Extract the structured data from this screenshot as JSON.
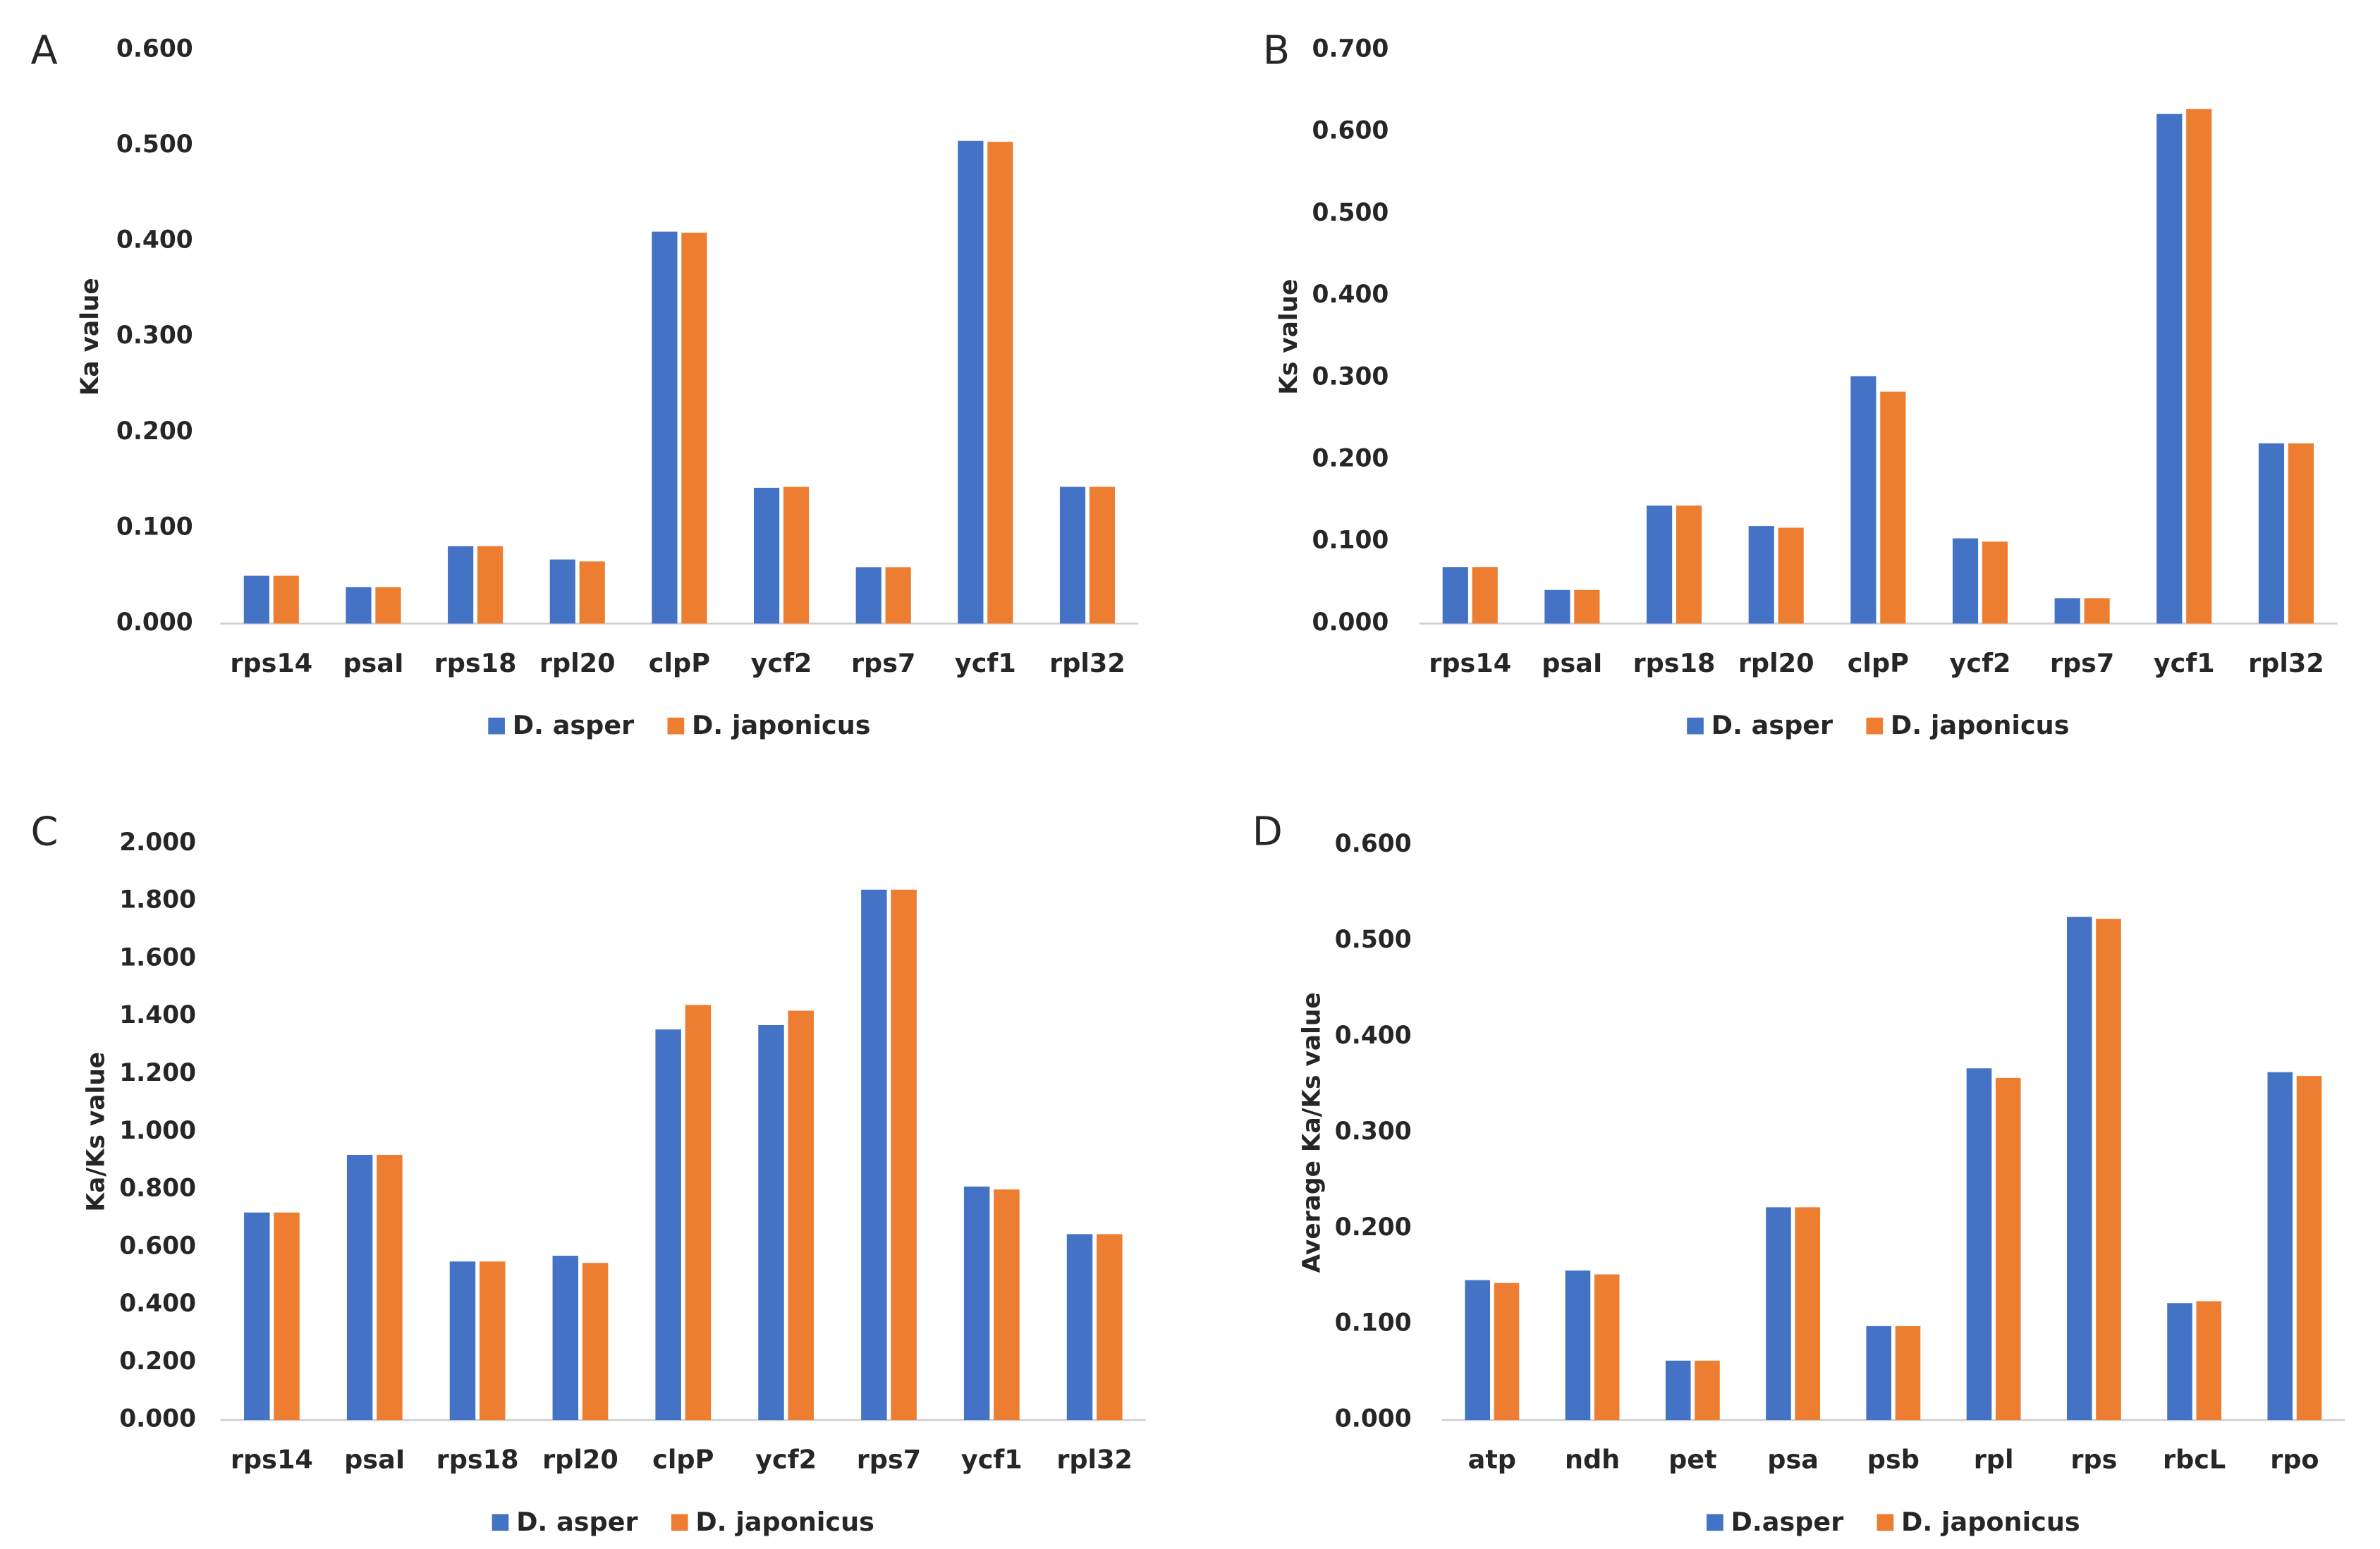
{
  "chart_data": [
    {
      "type": "bar",
      "panel": "A",
      "ylabel": "Ka value",
      "categories": [
        "rps14",
        "psaI",
        "rps18",
        "rpl20",
        "clpP",
        "ycf2",
        "rps7",
        "ycf1",
        "rpl32"
      ],
      "series": [
        {
          "name": "D. asper",
          "color": "#4472c4",
          "values": [
            0.05,
            0.038,
            0.081,
            0.067,
            0.41,
            0.142,
            0.059,
            0.505,
            0.143
          ]
        },
        {
          "name": "D. japonicus",
          "color": "#ed7d31",
          "values": [
            0.05,
            0.038,
            0.081,
            0.065,
            0.409,
            0.143,
            0.059,
            0.504,
            0.143
          ]
        }
      ],
      "ylim": [
        0,
        0.6
      ],
      "yticks": [
        {
          "value": 0,
          "label": "0.000"
        },
        {
          "value": 0.1,
          "label": "0.100"
        },
        {
          "value": 0.2,
          "label": "0.200"
        },
        {
          "value": 0.3,
          "label": "0.300"
        },
        {
          "value": 0.4,
          "label": "0.400"
        },
        {
          "value": 0.5,
          "label": "0.500"
        },
        {
          "value": 0.6,
          "label": "0.600"
        }
      ],
      "grid": false,
      "legend": "bottom"
    },
    {
      "type": "bar",
      "panel": "B",
      "ylabel": "Ks value",
      "categories": [
        "rps14",
        "psaI",
        "rps18",
        "rpl20",
        "clpP",
        "ycf2",
        "rps7",
        "ycf1",
        "rpl32"
      ],
      "series": [
        {
          "name": "D. asper",
          "color": "#4472c4",
          "values": [
            0.069,
            0.041,
            0.144,
            0.119,
            0.302,
            0.104,
            0.031,
            0.622,
            0.22
          ]
        },
        {
          "name": "D. japonicus",
          "color": "#ed7d31",
          "values": [
            0.069,
            0.041,
            0.144,
            0.117,
            0.283,
            0.1,
            0.031,
            0.628,
            0.22
          ]
        }
      ],
      "ylim": [
        0,
        0.7
      ],
      "yticks": [
        {
          "value": 0,
          "label": "0.000"
        },
        {
          "value": 0.1,
          "label": "0.100"
        },
        {
          "value": 0.2,
          "label": "0.200"
        },
        {
          "value": 0.3,
          "label": "0.300"
        },
        {
          "value": 0.4,
          "label": "0.400"
        },
        {
          "value": 0.5,
          "label": "0.500"
        },
        {
          "value": 0.6,
          "label": "0.600"
        },
        {
          "value": 0.7,
          "label": "0.700"
        }
      ],
      "grid": false,
      "legend": "bottom"
    },
    {
      "type": "bar",
      "panel": "C",
      "ylabel": "Ka/Ks value",
      "categories": [
        "rps14",
        "psaI",
        "rps18",
        "rpl20",
        "clpP",
        "ycf2",
        "rps7",
        "ycf1",
        "rpl32"
      ],
      "series": [
        {
          "name": "D. asper",
          "color": "#4472c4",
          "values": [
            0.72,
            0.92,
            0.55,
            0.57,
            1.355,
            1.37,
            1.84,
            0.81,
            0.645
          ]
        },
        {
          "name": "D. japonicus",
          "color": "#ed7d31",
          "values": [
            0.72,
            0.92,
            0.55,
            0.545,
            1.44,
            1.42,
            1.84,
            0.8,
            0.645
          ]
        }
      ],
      "ylim": [
        0,
        2
      ],
      "yticks": [
        {
          "value": 0,
          "label": "0.000"
        },
        {
          "value": 0.2,
          "label": "0.200"
        },
        {
          "value": 0.4,
          "label": "0.400"
        },
        {
          "value": 0.6,
          "label": "0.600"
        },
        {
          "value": 0.8,
          "label": "0.800"
        },
        {
          "value": 1,
          "label": "1.000"
        },
        {
          "value": 1.2,
          "label": "1.200"
        },
        {
          "value": 1.4,
          "label": "1.400"
        },
        {
          "value": 1.6,
          "label": "1.600"
        },
        {
          "value": 1.8,
          "label": "1.800"
        },
        {
          "value": 2,
          "label": "2.000"
        }
      ],
      "grid": false,
      "legend": "bottom"
    },
    {
      "type": "bar",
      "panel": "D",
      "ylabel": "Average Ka/Ks value",
      "categories": [
        "atp",
        "ndh",
        "pet",
        "psa",
        "psb",
        "rpl",
        "rps",
        "rbcL",
        "rpo"
      ],
      "series": [
        {
          "name": "D.asper",
          "color": "#4472c4",
          "values": [
            0.146,
            0.156,
            0.062,
            0.222,
            0.098,
            0.367,
            0.525,
            0.122,
            0.363
          ]
        },
        {
          "name": "D. japonicus",
          "color": "#ed7d31",
          "values": [
            0.143,
            0.152,
            0.062,
            0.222,
            0.098,
            0.357,
            0.523,
            0.124,
            0.359
          ]
        }
      ],
      "ylim": [
        0,
        0.6
      ],
      "yticks": [
        {
          "value": 0,
          "label": "0.000"
        },
        {
          "value": 0.1,
          "label": "0.100"
        },
        {
          "value": 0.2,
          "label": "0.200"
        },
        {
          "value": 0.3,
          "label": "0.300"
        },
        {
          "value": 0.4,
          "label": "0.400"
        },
        {
          "value": 0.5,
          "label": "0.500"
        },
        {
          "value": 0.6,
          "label": "0.600"
        }
      ],
      "grid": false,
      "legend": "bottom"
    }
  ]
}
